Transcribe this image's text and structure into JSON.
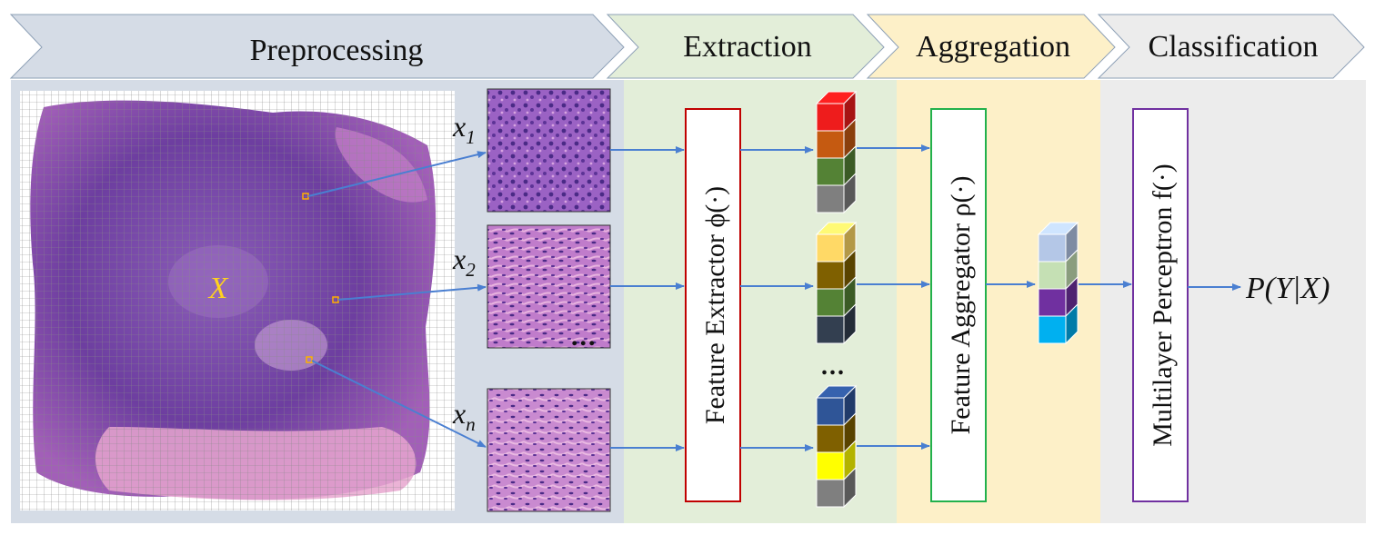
{
  "stages": [
    {
      "id": "preprocessing",
      "label": "Preprocessing",
      "color": "#d5dce6"
    },
    {
      "id": "extraction",
      "label": "Extraction",
      "color": "#e3eed9"
    },
    {
      "id": "aggregation",
      "label": "Aggregation",
      "color": "#fdf0c8"
    },
    {
      "id": "classification",
      "label": "Classification",
      "color": "#ececec"
    }
  ],
  "slide_label": "X",
  "patch_labels": {
    "base": "x",
    "subscripts": [
      "1",
      "2",
      "n"
    ]
  },
  "dots": "...",
  "extractor_label": "Feature Extractor ϕ(·)",
  "aggregator_label": "Feature Aggregator ρ(·)",
  "classifier_label": "Multilayer Perceptron f(·)",
  "output_label": "P(Y|X)",
  "colors": {
    "arrow": "#4a7fd1",
    "extractor_border": "#c00000",
    "aggregator_border": "#22b14c",
    "classifier_border": "#7030a0",
    "slide_label": "#ffd21f",
    "grid": "#888888",
    "tissue_dark": "#6d3ea0",
    "tissue_light": "#e8a6cf"
  },
  "feature_stacks": {
    "top": [
      "#ee1c1c",
      "#c55a11",
      "#548235",
      "#7f7f7f"
    ],
    "middle": [
      "#ffd966",
      "#7f6000",
      "#548235",
      "#333f50"
    ],
    "bottom": [
      "#2f5597",
      "#7f6000",
      "#ffff00",
      "#7f7f7f"
    ],
    "aggregated": [
      "#b4c7e7",
      "#c5e0b4",
      "#7030a0",
      "#00b0f0"
    ]
  }
}
